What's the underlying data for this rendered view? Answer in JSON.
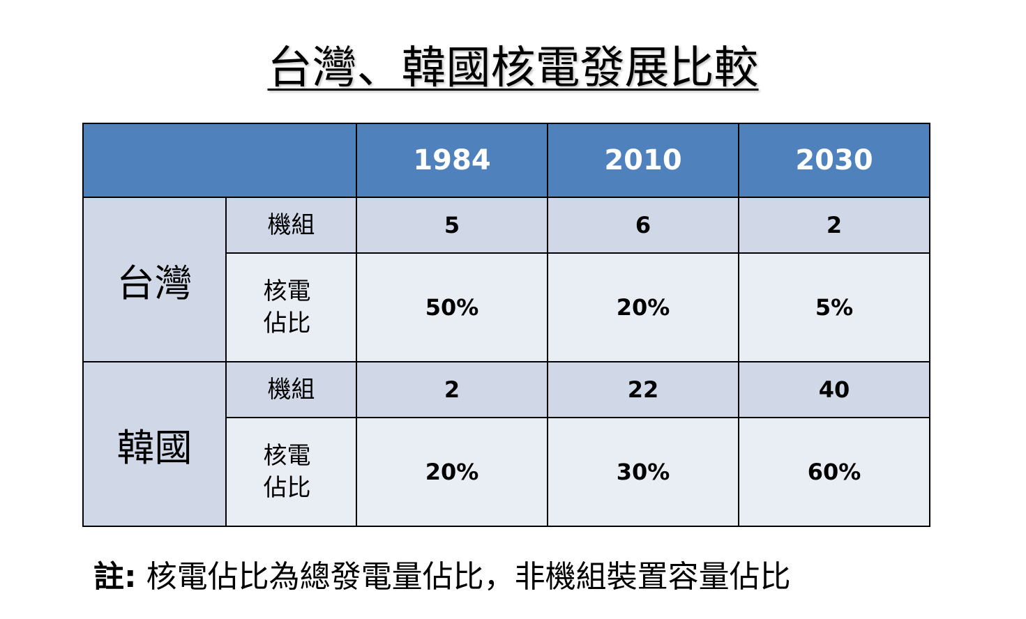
{
  "title": "台灣、韓國核電發展比較",
  "table": {
    "years": [
      "1984",
      "2010",
      "2030"
    ],
    "countries": [
      {
        "name": "台灣",
        "rows": [
          {
            "label": "機組",
            "values": [
              "5",
              "6",
              "2"
            ]
          },
          {
            "label": "核電佔比",
            "values": [
              "50%",
              "20%",
              "5%"
            ]
          }
        ]
      },
      {
        "name": "韓國",
        "rows": [
          {
            "label": "機組",
            "values": [
              "2",
              "22",
              "40"
            ]
          },
          {
            "label": "核電佔比",
            "values": [
              "20%",
              "30%",
              "60%"
            ]
          }
        ]
      }
    ]
  },
  "note": {
    "prefix": "註:",
    "text": " 核電佔比為總發電量佔比，非機組裝置容量佔比"
  },
  "colors": {
    "header_bg": "#4f81bd",
    "band_dark": "#d0d8e8",
    "band_light": "#e9edf4"
  }
}
